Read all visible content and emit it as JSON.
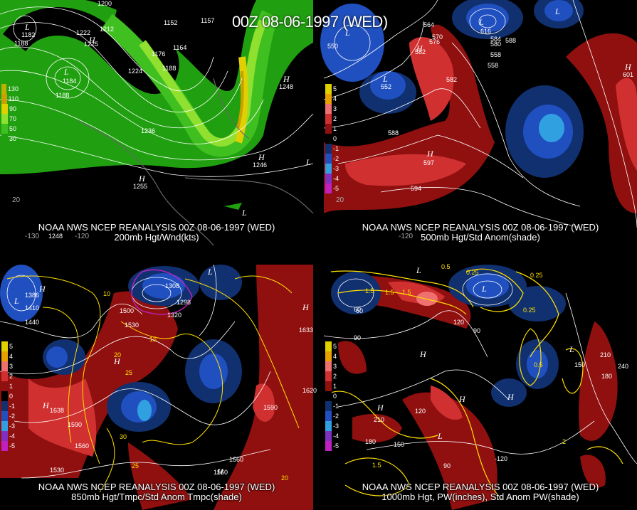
{
  "main_title": "00Z 08-06-1997 (WED)",
  "panels": [
    {
      "caption1": "NOAA NWS NCEP REANALYSIS 00Z 08-06-1997 (WED)",
      "caption2": "200mb Hgt/Wnd(kts)",
      "legend": [
        {
          "label": "130",
          "color": "#c0b000"
        },
        {
          "label": "110",
          "color": "#c8a000"
        },
        {
          "label": "90",
          "color": "#e0d000"
        },
        {
          "label": "70",
          "color": "#90e030"
        },
        {
          "label": "50",
          "color": "#40c020"
        },
        {
          "label": "30",
          "color": "#20a010"
        }
      ],
      "contour_labels": [
        "1200",
        "1212",
        "1222",
        "1225",
        "1152",
        "1157",
        "1182",
        "1188",
        "1176",
        "1164",
        "1184",
        "1188",
        "1224",
        "1188",
        "1236",
        "1248",
        "1246",
        "1255",
        "1248",
        "20",
        "-130",
        "-120"
      ],
      "highs_lows": [
        "L",
        "H",
        "L",
        "H",
        "H",
        "L",
        "H",
        "L"
      ]
    },
    {
      "caption1": "NOAA NWS NCEP REANALYSIS 00Z 08-06-1997 (WED)",
      "caption2": "500mb Hgt/Std Anom(shade)",
      "legend": [
        {
          "label": "5",
          "color": "#e0d000"
        },
        {
          "label": "4",
          "color": "#e8a000"
        },
        {
          "label": "3",
          "color": "#f07070"
        },
        {
          "label": "2",
          "color": "#d03030"
        },
        {
          "label": "1",
          "color": "#901010"
        },
        {
          "label": "0",
          "color": "#000000"
        },
        {
          "label": "-1",
          "color": "#103070"
        },
        {
          "label": "-2",
          "color": "#2050c0"
        },
        {
          "label": "-3",
          "color": "#30a0e0"
        },
        {
          "label": "-4",
          "color": "#8030c0"
        },
        {
          "label": "-5",
          "color": "#c020c0"
        }
      ],
      "contour_labels": [
        "564",
        "570",
        "576",
        "582",
        "588",
        "594",
        "558",
        "550",
        "552",
        "597",
        "582",
        "580",
        "558",
        "601",
        "616",
        "584",
        "588",
        "20",
        "-120"
      ],
      "highs_lows": [
        "L",
        "H",
        "H",
        "L",
        "L",
        "H",
        "L"
      ]
    },
    {
      "caption1": "NOAA NWS NCEP REANALYSIS 00Z 08-06-1997 (WED)",
      "caption2": "850mb Hgt/Tmpc/Std Anom Tmpc(shade)",
      "legend": [
        {
          "label": "5",
          "color": "#e0d000"
        },
        {
          "label": "4",
          "color": "#e8a000"
        },
        {
          "label": "3",
          "color": "#f07070"
        },
        {
          "label": "2",
          "color": "#d03030"
        },
        {
          "label": "1",
          "color": "#901010"
        },
        {
          "label": "0",
          "color": "#000000"
        },
        {
          "label": "-1",
          "color": "#103070"
        },
        {
          "label": "-2",
          "color": "#2050c0"
        },
        {
          "label": "-3",
          "color": "#30a0e0"
        },
        {
          "label": "-4",
          "color": "#8030c0"
        },
        {
          "label": "-5",
          "color": "#c020c0"
        }
      ],
      "contour_labels": [
        "1386",
        "1410",
        "1440",
        "1500",
        "1530",
        "1560",
        "1590",
        "1620",
        "1590",
        "1560",
        "1530",
        "1560",
        "1320",
        "1298",
        "1308",
        "10",
        "15",
        "20",
        "25",
        "30",
        "25",
        "1633",
        "1638",
        "20"
      ],
      "highs_lows": [
        "H",
        "H",
        "L",
        "H",
        "H",
        "L",
        "H"
      ]
    },
    {
      "caption1": "NOAA NWS NCEP REANALYSIS 00Z 08-06-1997 (WED)",
      "caption2": "1000mb Hgt, PW(inches), Std Anom PW(shade)",
      "legend": [
        {
          "label": "5",
          "color": "#e0d000"
        },
        {
          "label": "4",
          "color": "#e8a000"
        },
        {
          "label": "3",
          "color": "#f07070"
        },
        {
          "label": "2",
          "color": "#d03030"
        },
        {
          "label": "1",
          "color": "#901010"
        },
        {
          "label": "0",
          "color": "#000000"
        },
        {
          "label": "-1",
          "color": "#103070"
        },
        {
          "label": "-2",
          "color": "#2050c0"
        },
        {
          "label": "-3",
          "color": "#30a0e0"
        },
        {
          "label": "-4",
          "color": "#8030c0"
        },
        {
          "label": "-5",
          "color": "#c020c0"
        }
      ],
      "contour_labels": [
        "0.5",
        "0.25",
        "0.25",
        "1.5",
        "1.5",
        "1.5",
        "0.25",
        "0.5",
        "60",
        "90",
        "120",
        "150",
        "180",
        "210",
        "240",
        "210",
        "150",
        "120",
        "90",
        "180",
        "90",
        "-120",
        "60",
        "1.5",
        "2"
      ],
      "highs_lows": [
        "L",
        "H",
        "H",
        "L",
        "H",
        "H",
        "L",
        "L"
      ]
    }
  ]
}
